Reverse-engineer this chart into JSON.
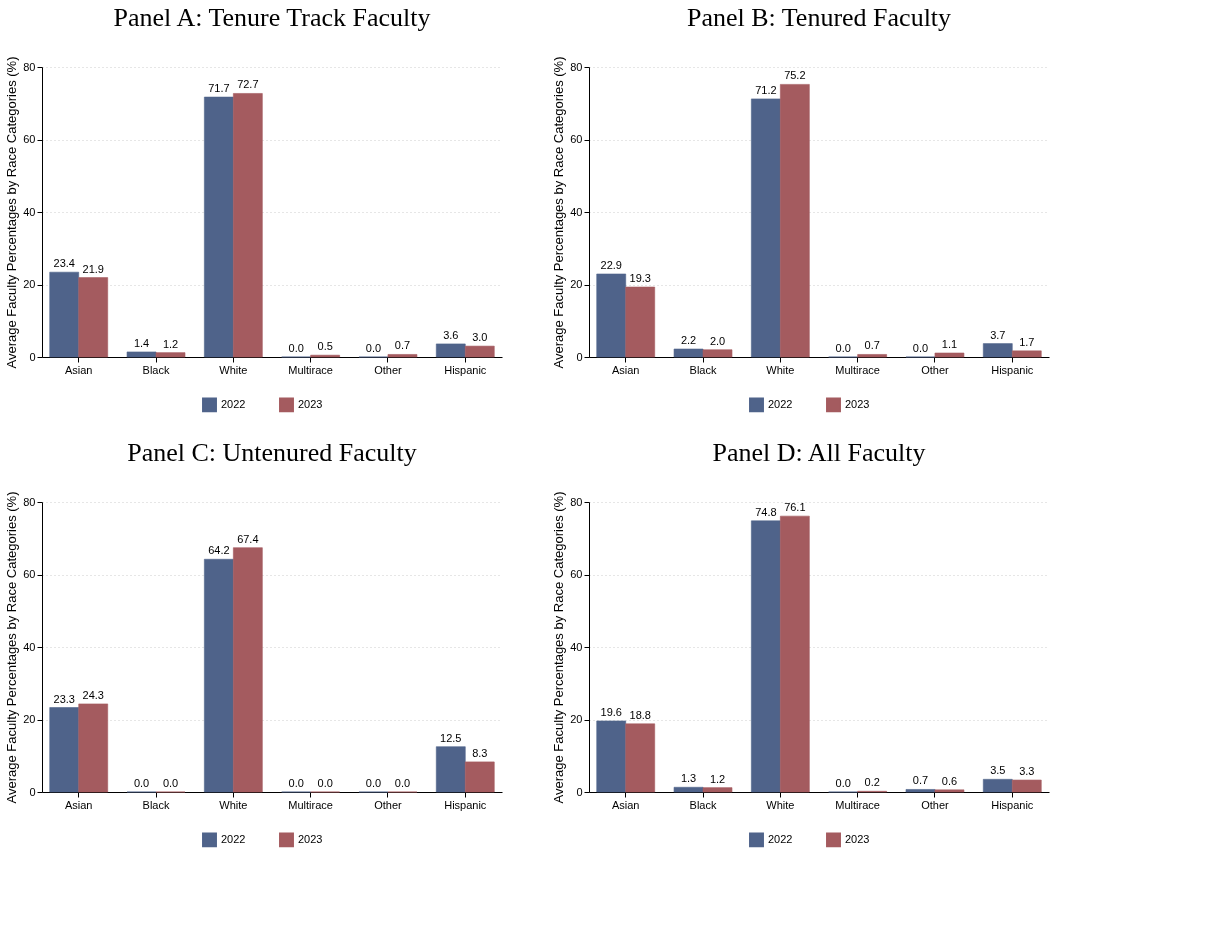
{
  "chart_data": [
    {
      "type": "bar",
      "title": "Panel A: Tenure Track Faculty",
      "ylabel": "Average Faculty Percentages by Race Categories (%)",
      "categories": [
        "Asian",
        "Black",
        "White",
        "Multirace",
        "Other",
        "Hispanic"
      ],
      "series": [
        {
          "name": "2022",
          "color": "#4f638a",
          "values": [
            23.4,
            1.4,
            71.7,
            0,
            0,
            3.6
          ],
          "value_labels": [
            "23.4",
            "1.4",
            "71.7",
            "0.0",
            "0.0",
            "3.6"
          ]
        },
        {
          "name": "2023",
          "color": "#a45b5f",
          "values": [
            21.9,
            1.2,
            72.7,
            0.5,
            0.7,
            3
          ],
          "value_labels": [
            "21.9",
            "1.2",
            "72.7",
            "0.5",
            "0.7",
            "3.0"
          ]
        }
      ],
      "ylim": [
        0,
        80
      ],
      "yticks": [
        0,
        20,
        40,
        60,
        80
      ],
      "grid": "y",
      "legend": "bottom"
    },
    {
      "type": "bar",
      "title": "Panel B: Tenured Faculty",
      "ylabel": "Average Faculty Percentages by Race Categories (%)",
      "categories": [
        "Asian",
        "Black",
        "White",
        "Multirace",
        "Other",
        "Hispanic"
      ],
      "series": [
        {
          "name": "2022",
          "color": "#4f638a",
          "values": [
            22.9,
            2.2,
            71.2,
            0,
            0,
            3.7
          ],
          "value_labels": [
            "22.9",
            "2.2",
            "71.2",
            "0.0",
            "0.0",
            "3.7"
          ]
        },
        {
          "name": "2023",
          "color": "#a45b5f",
          "values": [
            19.3,
            2,
            75.2,
            0.7,
            1.1,
            1.7
          ],
          "value_labels": [
            "19.3",
            "2.0",
            "75.2",
            "0.7",
            "1.1",
            "1.7"
          ]
        }
      ],
      "ylim": [
        0,
        80
      ],
      "yticks": [
        0,
        20,
        40,
        60,
        80
      ],
      "grid": "y",
      "legend": "bottom"
    },
    {
      "type": "bar",
      "title": "Panel C: Untenured Faculty",
      "ylabel": "Average Faculty Percentages by Race Categories (%)",
      "categories": [
        "Asian",
        "Black",
        "White",
        "Multirace",
        "Other",
        "Hispanic"
      ],
      "series": [
        {
          "name": "2022",
          "color": "#4f638a",
          "values": [
            23.3,
            0,
            64.2,
            0,
            0,
            12.5
          ],
          "value_labels": [
            "23.3",
            "0.0",
            "64.2",
            "0.0",
            "0.0",
            "12.5"
          ]
        },
        {
          "name": "2023",
          "color": "#a45b5f",
          "values": [
            24.3,
            0,
            67.4,
            0,
            0,
            8.3
          ],
          "value_labels": [
            "24.3",
            "0.0",
            "67.4",
            "0.0",
            "0.0",
            "8.3"
          ]
        }
      ],
      "ylim": [
        0,
        80
      ],
      "yticks": [
        0,
        20,
        40,
        60,
        80
      ],
      "grid": "y",
      "legend": "bottom"
    },
    {
      "type": "bar",
      "title": "Panel D: All Faculty",
      "ylabel": "Average Faculty Percentages by Race Categories (%)",
      "categories": [
        "Asian",
        "Black",
        "White",
        "Multirace",
        "Other",
        "Hispanic"
      ],
      "series": [
        {
          "name": "2022",
          "color": "#4f638a",
          "values": [
            19.6,
            1.3,
            74.8,
            0,
            0.7,
            3.5
          ],
          "value_labels": [
            "19.6",
            "1.3",
            "74.8",
            "0.0",
            "0.7",
            "3.5"
          ]
        },
        {
          "name": "2023",
          "color": "#a45b5f",
          "values": [
            18.8,
            1.2,
            76.1,
            0.2,
            0.6,
            3.3
          ],
          "value_labels": [
            "18.8",
            "1.2",
            "76.1",
            "0.2",
            "0.6",
            "3.3"
          ]
        }
      ],
      "ylim": [
        0,
        80
      ],
      "yticks": [
        0,
        20,
        40,
        60,
        80
      ],
      "grid": "y",
      "legend": "bottom"
    }
  ]
}
